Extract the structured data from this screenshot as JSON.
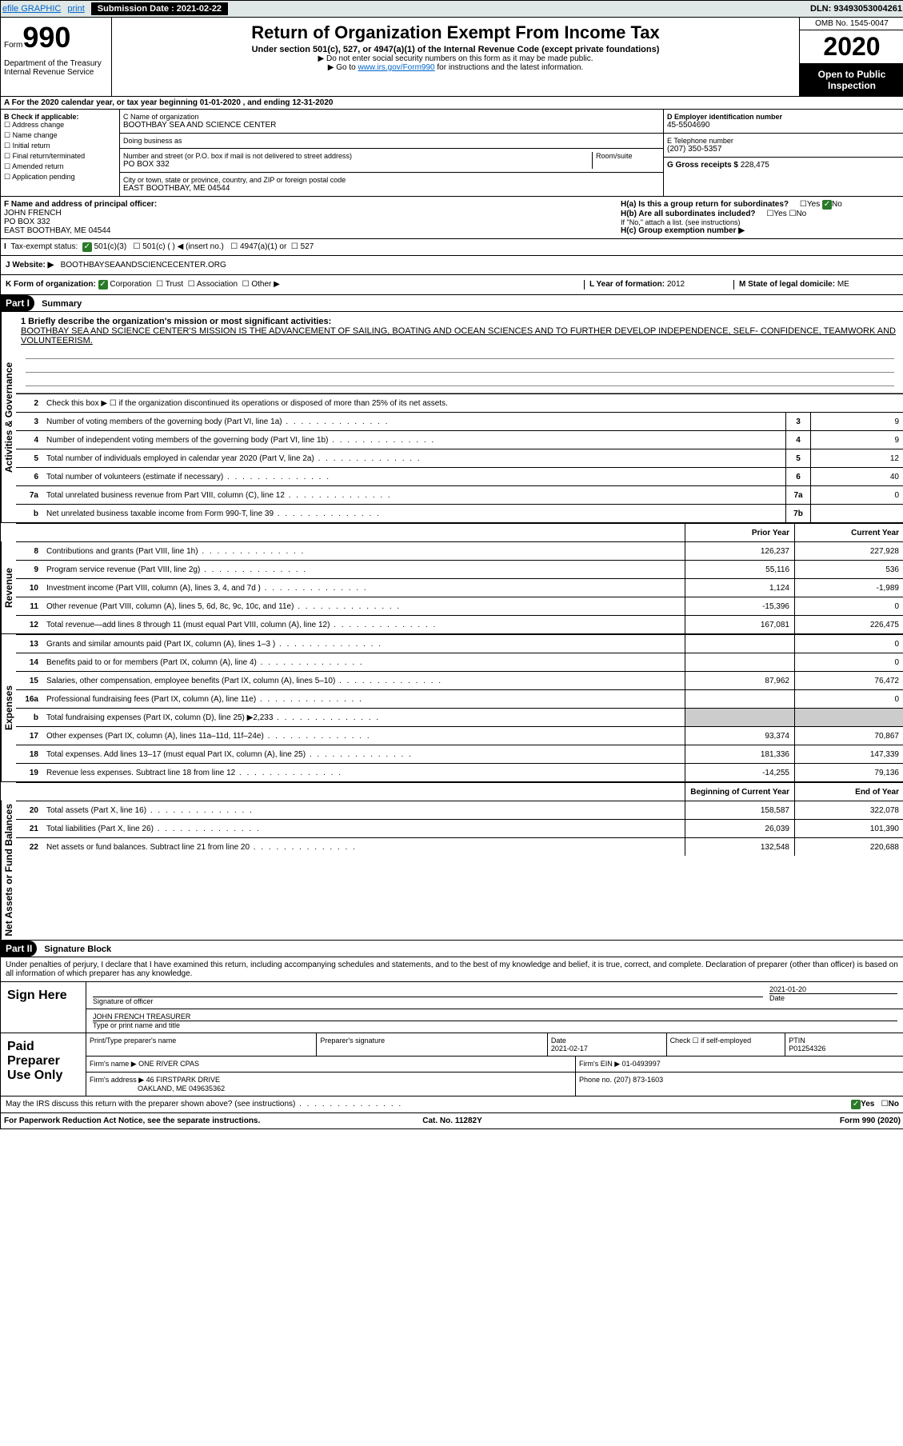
{
  "topbar": {
    "efile": "efile GRAPHIC",
    "print": "print",
    "sub_date_label": "Submission Date : 2021-02-22",
    "dln": "DLN: 93493053004261"
  },
  "header": {
    "form_word": "Form",
    "form_num": "990",
    "title": "Return of Organization Exempt From Income Tax",
    "subtitle": "Under section 501(c), 527, or 4947(a)(1) of the Internal Revenue Code (except private foundations)",
    "note1": "▶ Do not enter social security numbers on this form as it may be made public.",
    "note2_pre": "▶ Go to ",
    "note2_link": "www.irs.gov/Form990",
    "note2_post": " for instructions and the latest information.",
    "dept1": "Department of the Treasury",
    "dept2": "Internal Revenue Service",
    "omb": "OMB No. 1545-0047",
    "year": "2020",
    "open": "Open to Public Inspection"
  },
  "sectionA": "A For the 2020 calendar year, or tax year beginning 01-01-2020   , and ending 12-31-2020",
  "boxB": {
    "title": "B Check if applicable:",
    "items": [
      "Address change",
      "Name change",
      "Initial return",
      "Final return/terminated",
      "Amended return",
      "Application pending"
    ]
  },
  "boxC": {
    "label": "C Name of organization",
    "name": "BOOTHBAY SEA AND SCIENCE CENTER",
    "dba_label": "Doing business as",
    "addr_label": "Number and street (or P.O. box if mail is not delivered to street address)",
    "room_label": "Room/suite",
    "addr": "PO BOX 332",
    "city_label": "City or town, state or province, country, and ZIP or foreign postal code",
    "city": "EAST BOOTHBAY, ME  04544"
  },
  "boxD": {
    "label": "D Employer identification number",
    "val": "45-5504690"
  },
  "boxE": {
    "label": "E Telephone number",
    "val": "(207) 350-5357"
  },
  "boxG": {
    "label": "G Gross receipts $",
    "val": "228,475"
  },
  "boxF": {
    "label": "F Name and address of principal officer:",
    "name": "JOHN FRENCH",
    "addr1": "PO BOX 332",
    "addr2": "EAST BOOTHBAY, ME  04544"
  },
  "boxH": {
    "a": "H(a)  Is this a group return for subordinates?",
    "a_yes": "Yes",
    "a_no": "No",
    "b": "H(b)  Are all subordinates included?",
    "b_note": "If \"No,\" attach a list. (see instructions)",
    "c": "H(c)  Group exemption number ▶"
  },
  "taxExempt": {
    "label": "Tax-exempt status:",
    "c3": "501(c)(3)",
    "c_other": "501(c) (  ) ◀ (insert no.)",
    "a1": "4947(a)(1) or",
    "s527": "527"
  },
  "boxJ": {
    "label": "J   Website: ▶",
    "val": "BOOTHBAYSEAANDSCIENCECENTER.ORG"
  },
  "boxK": {
    "label": "K Form of organization:",
    "corp": "Corporation",
    "trust": "Trust",
    "assoc": "Association",
    "other": "Other ▶"
  },
  "boxL": {
    "label": "L Year of formation:",
    "val": "2012"
  },
  "boxM": {
    "label": "M State of legal domicile:",
    "val": "ME"
  },
  "part1": {
    "header": "Part I",
    "title": "Summary",
    "mission_label": "1  Briefly describe the organization's mission or most significant activities:",
    "mission": "BOOTHBAY SEA AND SCIENCE CENTER'S MISSION IS THE ADVANCEMENT OF SAILING, BOATING AND OCEAN SCIENCES AND TO FURTHER DEVELOP INDEPENDENCE, SELF- CONFIDENCE, TEAMWORK AND VOLUNTEERISM.",
    "line2": "Check this box ▶ ☐  if the organization discontinued its operations or disposed of more than 25% of its net assets.",
    "governance_label": "Activities & Governance",
    "revenue_label": "Revenue",
    "expenses_label": "Expenses",
    "netassets_label": "Net Assets or Fund Balances",
    "prior_col": "Prior Year",
    "current_col": "Current Year",
    "begin_col": "Beginning of Current Year",
    "end_col": "End of Year",
    "lines_gov": [
      {
        "n": "3",
        "label": "Number of voting members of the governing body (Part VI, line 1a)",
        "box": "3",
        "val": "9"
      },
      {
        "n": "4",
        "label": "Number of independent voting members of the governing body (Part VI, line 1b)",
        "box": "4",
        "val": "9"
      },
      {
        "n": "5",
        "label": "Total number of individuals employed in calendar year 2020 (Part V, line 2a)",
        "box": "5",
        "val": "12"
      },
      {
        "n": "6",
        "label": "Total number of volunteers (estimate if necessary)",
        "box": "6",
        "val": "40"
      },
      {
        "n": "7a",
        "label": "Total unrelated business revenue from Part VIII, column (C), line 12",
        "box": "7a",
        "val": "0"
      },
      {
        "n": "b",
        "label": "Net unrelated business taxable income from Form 990-T, line 39",
        "box": "7b",
        "val": ""
      }
    ],
    "lines_rev": [
      {
        "n": "8",
        "label": "Contributions and grants (Part VIII, line 1h)",
        "prior": "126,237",
        "curr": "227,928"
      },
      {
        "n": "9",
        "label": "Program service revenue (Part VIII, line 2g)",
        "prior": "55,116",
        "curr": "536"
      },
      {
        "n": "10",
        "label": "Investment income (Part VIII, column (A), lines 3, 4, and 7d )",
        "prior": "1,124",
        "curr": "-1,989"
      },
      {
        "n": "11",
        "label": "Other revenue (Part VIII, column (A), lines 5, 6d, 8c, 9c, 10c, and 11e)",
        "prior": "-15,396",
        "curr": "0"
      },
      {
        "n": "12",
        "label": "Total revenue—add lines 8 through 11 (must equal Part VIII, column (A), line 12)",
        "prior": "167,081",
        "curr": "226,475"
      }
    ],
    "lines_exp": [
      {
        "n": "13",
        "label": "Grants and similar amounts paid (Part IX, column (A), lines 1–3 )",
        "prior": "",
        "curr": "0"
      },
      {
        "n": "14",
        "label": "Benefits paid to or for members (Part IX, column (A), line 4)",
        "prior": "",
        "curr": "0"
      },
      {
        "n": "15",
        "label": "Salaries, other compensation, employee benefits (Part IX, column (A), lines 5–10)",
        "prior": "87,962",
        "curr": "76,472"
      },
      {
        "n": "16a",
        "label": "Professional fundraising fees (Part IX, column (A), line 11e)",
        "prior": "",
        "curr": "0"
      },
      {
        "n": "b",
        "label": "Total fundraising expenses (Part IX, column (D), line 25) ▶2,233",
        "prior": "SHADE",
        "curr": "SHADE"
      },
      {
        "n": "17",
        "label": "Other expenses (Part IX, column (A), lines 11a–11d, 11f–24e)",
        "prior": "93,374",
        "curr": "70,867"
      },
      {
        "n": "18",
        "label": "Total expenses. Add lines 13–17 (must equal Part IX, column (A), line 25)",
        "prior": "181,336",
        "curr": "147,339"
      },
      {
        "n": "19",
        "label": "Revenue less expenses. Subtract line 18 from line 12",
        "prior": "-14,255",
        "curr": "79,136"
      }
    ],
    "lines_net": [
      {
        "n": "20",
        "label": "Total assets (Part X, line 16)",
        "prior": "158,587",
        "curr": "322,078"
      },
      {
        "n": "21",
        "label": "Total liabilities (Part X, line 26)",
        "prior": "26,039",
        "curr": "101,390"
      },
      {
        "n": "22",
        "label": "Net assets or fund balances. Subtract line 21 from line 20",
        "prior": "132,548",
        "curr": "220,688"
      }
    ]
  },
  "part2": {
    "header": "Part II",
    "title": "Signature Block",
    "declaration": "Under penalties of perjury, I declare that I have examined this return, including accompanying schedules and statements, and to the best of my knowledge and belief, it is true, correct, and complete. Declaration of preparer (other than officer) is based on all information of which preparer has any knowledge.",
    "sign_here": "Sign Here",
    "sig_officer": "Signature of officer",
    "date": "Date",
    "date_val": "2021-01-20",
    "name_title_label": "Type or print name and title",
    "name_title": "JOHN FRENCH  TREASURER",
    "paid_prep": "Paid Preparer Use Only",
    "prep_name_label": "Print/Type preparer's name",
    "prep_sig_label": "Preparer's signature",
    "prep_date_label": "Date",
    "prep_date": "2021-02-17",
    "check_self": "Check ☐ if self-employed",
    "ptin_label": "PTIN",
    "ptin": "P01254326",
    "firm_name_label": "Firm's name    ▶",
    "firm_name": "ONE RIVER CPAS",
    "firm_ein_label": "Firm's EIN ▶",
    "firm_ein": "01-0493997",
    "firm_addr_label": "Firm's address ▶",
    "firm_addr1": "46 FIRSTPARK DRIVE",
    "firm_addr2": "OAKLAND, ME  049635362",
    "phone_label": "Phone no.",
    "phone": "(207) 873-1603",
    "discuss": "May the IRS discuss this return with the preparer shown above? (see instructions)",
    "yes": "Yes",
    "no": "No"
  },
  "footer": {
    "left": "For Paperwork Reduction Act Notice, see the separate instructions.",
    "mid": "Cat. No. 11282Y",
    "right": "Form 990 (2020)"
  }
}
